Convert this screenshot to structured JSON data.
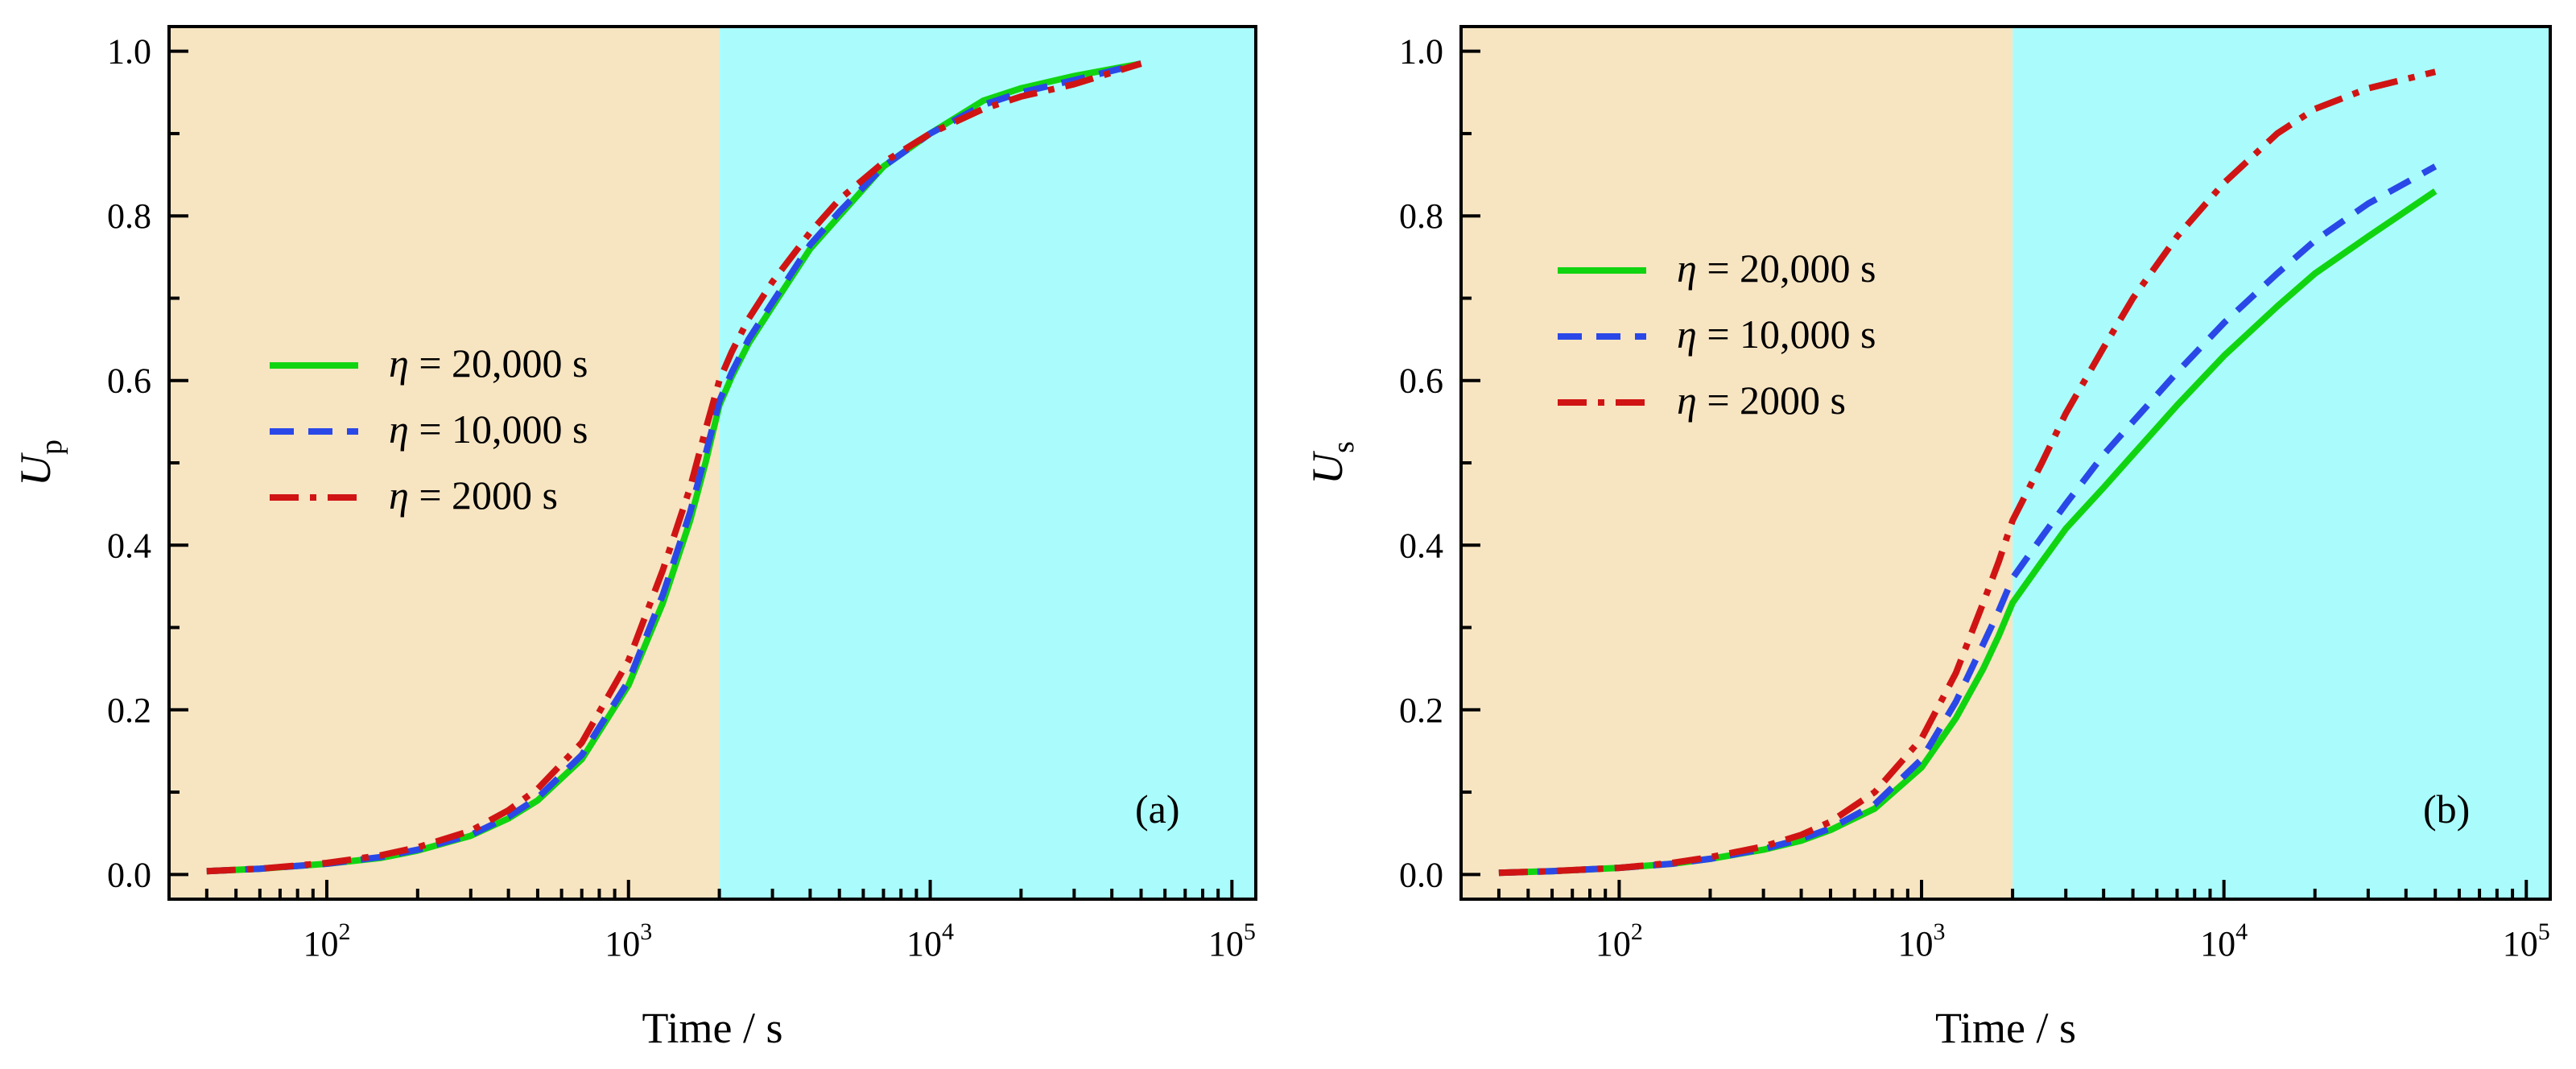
{
  "chart_data": [
    {
      "type": "line",
      "panel_label": "(a)",
      "xlabel": "Time / s",
      "ylabel": {
        "main": "U",
        "sub": "p"
      },
      "xscale": "log",
      "xlim": [
        30,
        120000
      ],
      "ylim": [
        -0.03,
        1.03
      ],
      "xticks": [
        {
          "base": "10",
          "exp": "2",
          "value": 100
        },
        {
          "base": "10",
          "exp": "3",
          "value": 1000
        },
        {
          "base": "10",
          "exp": "4",
          "value": 10000
        },
        {
          "base": "10",
          "exp": "5",
          "value": 100000
        }
      ],
      "yticks": [
        "0.0",
        "0.2",
        "0.4",
        "0.6",
        "0.8",
        "1.0"
      ],
      "shaded_regions": [
        {
          "from": 30,
          "to": 2000,
          "color": "#f7e4c1"
        },
        {
          "from": 2000,
          "to": 120000,
          "color": "#aafcfc"
        }
      ],
      "legend_placement": "middle-left",
      "series": [
        {
          "name": "20,000 s",
          "color": "#11d411",
          "dash": "solid",
          "x": [
            40,
            60,
            100,
            150,
            200,
            300,
            400,
            500,
            700,
            1000,
            1300,
            1600,
            1800,
            2000,
            2200,
            2500,
            3000,
            4000,
            5000,
            7000,
            10000,
            15000,
            20000,
            30000,
            50000
          ],
          "y": [
            0.004,
            0.007,
            0.013,
            0.02,
            0.029,
            0.047,
            0.068,
            0.09,
            0.14,
            0.23,
            0.33,
            0.43,
            0.5,
            0.57,
            0.605,
            0.645,
            0.69,
            0.76,
            0.8,
            0.86,
            0.9,
            0.94,
            0.955,
            0.97,
            0.985
          ]
        },
        {
          "name": "10,000 s",
          "color": "#2a48e8",
          "dash": "dashed",
          "x": [
            40,
            60,
            100,
            150,
            200,
            300,
            400,
            500,
            700,
            1000,
            1300,
            1600,
            1800,
            2000,
            2200,
            2500,
            3000,
            4000,
            5000,
            7000,
            10000,
            15000,
            20000,
            30000,
            50000
          ],
          "y": [
            0.004,
            0.007,
            0.013,
            0.021,
            0.03,
            0.048,
            0.07,
            0.093,
            0.145,
            0.235,
            0.34,
            0.44,
            0.51,
            0.575,
            0.61,
            0.65,
            0.695,
            0.765,
            0.805,
            0.86,
            0.9,
            0.935,
            0.95,
            0.965,
            0.985
          ]
        },
        {
          "name": "2000 s",
          "color": "#d01414",
          "dash": "dashdot",
          "x": [
            40,
            60,
            100,
            150,
            200,
            300,
            400,
            500,
            700,
            1000,
            1300,
            1600,
            1800,
            2000,
            2200,
            2500,
            3000,
            4000,
            5000,
            7000,
            10000,
            15000,
            20000,
            30000,
            50000
          ],
          "y": [
            0.004,
            0.007,
            0.014,
            0.023,
            0.033,
            0.053,
            0.078,
            0.104,
            0.16,
            0.26,
            0.37,
            0.47,
            0.54,
            0.6,
            0.635,
            0.675,
            0.72,
            0.78,
            0.82,
            0.865,
            0.9,
            0.93,
            0.945,
            0.96,
            0.985
          ]
        }
      ]
    },
    {
      "type": "line",
      "panel_label": "(b)",
      "xlabel": "Time / s",
      "ylabel": {
        "main": "U",
        "sub": "s"
      },
      "xscale": "log",
      "xlim": [
        30,
        120000
      ],
      "ylim": [
        -0.03,
        1.03
      ],
      "xticks": [
        {
          "base": "10",
          "exp": "2",
          "value": 100
        },
        {
          "base": "10",
          "exp": "3",
          "value": 1000
        },
        {
          "base": "10",
          "exp": "4",
          "value": 10000
        },
        {
          "base": "10",
          "exp": "5",
          "value": 100000
        }
      ],
      "yticks": [
        "0.0",
        "0.2",
        "0.4",
        "0.6",
        "0.8",
        "1.0"
      ],
      "shaded_regions": [
        {
          "from": 30,
          "to": 2000,
          "color": "#f7e4c1"
        },
        {
          "from": 2000,
          "to": 120000,
          "color": "#aafcfc"
        }
      ],
      "legend_placement": "upper-left",
      "series": [
        {
          "name": "20,000 s",
          "color": "#11d411",
          "dash": "solid",
          "x": [
            40,
            60,
            100,
            150,
            200,
            300,
            400,
            500,
            700,
            1000,
            1300,
            1600,
            1800,
            2000,
            2500,
            3000,
            4000,
            5000,
            7000,
            10000,
            15000,
            20000,
            30000,
            50000
          ],
          "y": [
            0.002,
            0.004,
            0.008,
            0.013,
            0.019,
            0.03,
            0.041,
            0.054,
            0.08,
            0.13,
            0.19,
            0.25,
            0.29,
            0.33,
            0.38,
            0.42,
            0.47,
            0.51,
            0.57,
            0.63,
            0.69,
            0.73,
            0.775,
            0.83
          ]
        },
        {
          "name": "10,000 s",
          "color": "#2a48e8",
          "dash": "dashed",
          "x": [
            40,
            60,
            100,
            150,
            200,
            300,
            400,
            500,
            700,
            1000,
            1300,
            1600,
            1800,
            2000,
            2500,
            3000,
            4000,
            5000,
            7000,
            10000,
            15000,
            20000,
            30000,
            50000
          ],
          "y": [
            0.002,
            0.004,
            0.008,
            0.013,
            0.019,
            0.031,
            0.043,
            0.056,
            0.085,
            0.14,
            0.21,
            0.28,
            0.32,
            0.36,
            0.41,
            0.45,
            0.51,
            0.55,
            0.61,
            0.67,
            0.73,
            0.77,
            0.815,
            0.86
          ]
        },
        {
          "name": "2000 s",
          "color": "#d01414",
          "dash": "dashdot",
          "x": [
            40,
            60,
            100,
            150,
            200,
            300,
            400,
            500,
            700,
            1000,
            1300,
            1600,
            1800,
            2000,
            2500,
            3000,
            4000,
            5000,
            7000,
            10000,
            15000,
            20000,
            30000,
            50000
          ],
          "y": [
            0.002,
            0.004,
            0.008,
            0.014,
            0.021,
            0.034,
            0.048,
            0.064,
            0.1,
            0.165,
            0.245,
            0.33,
            0.38,
            0.43,
            0.5,
            0.56,
            0.64,
            0.7,
            0.775,
            0.84,
            0.9,
            0.93,
            0.955,
            0.975
          ]
        }
      ]
    }
  ],
  "legend_symbol": "η",
  "legend_equals": " = "
}
